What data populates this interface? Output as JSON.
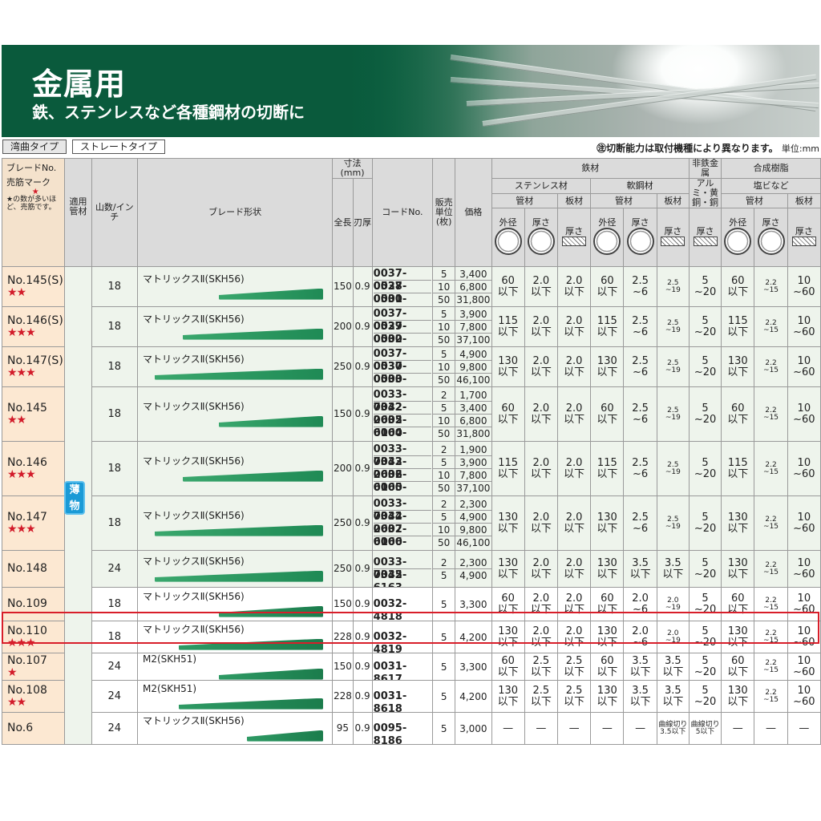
{
  "header": {
    "title": "金属用",
    "subtitle": "鉄、ステンレスなど各種鋼材の切断に"
  },
  "tabs": [
    "湾曲タイプ",
    "ストレートタイプ"
  ],
  "note": "㊟切断能力は取付機種により異なります。",
  "unit": "単位:mm",
  "columns": {
    "blade_no": "ブレードNo.",
    "mark": "売筋マーク",
    "mark_note": "★の数が多いほど、売筋です。",
    "material": "適用管材",
    "teeth": "山数/インチ",
    "shape": "ブレード形状",
    "dims": "寸法(mm)",
    "length": "全長",
    "thickness": "刃厚",
    "code": "コードNo.",
    "unit": "販売単位(枚)",
    "price": "価格",
    "steel": "鉄材",
    "stainless": "ステンレス材",
    "mild": "軟鋼材",
    "nonferrous": "非鉄金属",
    "resin": "合成樹脂",
    "nonferrous_sub": "アルミ・黄銅・銅",
    "resin_sub": "塩ビなど",
    "pipe": "管材",
    "plate": "板材",
    "od": "外径",
    "thick": "厚さ"
  },
  "thin_mark": "薄物",
  "rows": [
    {
      "no": "No.145(S)",
      "stars": "★★",
      "teeth": "18",
      "shape": "マトリックスⅡ(SKH56)",
      "len": "150",
      "t": "0.9",
      "codes": [
        [
          "0037-0528",
          "5",
          "3,400"
        ],
        [
          "0037-0531",
          "10",
          "6,800"
        ],
        [
          "0000-4421",
          "50",
          "31,800"
        ]
      ],
      "cap": [
        "60\n以下",
        "2.0\n以下",
        "2.0\n以下",
        "60\n以下",
        "2.5\n~6",
        "2.5\n~19",
        "5\n~20",
        "60\n以下",
        "2.2\n~15",
        "10\n~60"
      ]
    },
    {
      "no": "No.146(S)",
      "stars": "★★★",
      "teeth": "18",
      "shape": "マトリックスⅡ(SKH56)",
      "len": "200",
      "t": "0.9",
      "codes": [
        [
          "0037-0529",
          "5",
          "3,900"
        ],
        [
          "0037-0532",
          "10",
          "7,800"
        ],
        [
          "0000-4422",
          "50",
          "37,100"
        ]
      ],
      "cap": [
        "115\n以下",
        "2.0\n以下",
        "2.0\n以下",
        "115\n以下",
        "2.5\n~6",
        "2.5\n~19",
        "5\n~20",
        "115\n以下",
        "2.2\n~15",
        "10\n~60"
      ]
    },
    {
      "no": "No.147(S)",
      "stars": "★★★",
      "teeth": "18",
      "shape": "マトリックスⅡ(SKH56)",
      "len": "250",
      "t": "0.9",
      "codes": [
        [
          "0037-0530",
          "5",
          "4,900"
        ],
        [
          "0037-0533",
          "10",
          "9,800"
        ],
        [
          "0000-4423",
          "50",
          "46,100"
        ]
      ],
      "cap": [
        "130\n以下",
        "2.0\n以下",
        "2.0\n以下",
        "130\n以下",
        "2.5\n~6",
        "2.5\n~19",
        "5\n~20",
        "130\n以下",
        "2.2\n~15",
        "10\n~60"
      ]
    },
    {
      "no": "No.145",
      "stars": "★★",
      "teeth": "18",
      "shape": "マトリックスⅡ(SKH56)",
      "len": "150",
      "t": "0.9",
      "codes": [
        [
          "0033-7342",
          "2",
          "1,700"
        ],
        [
          "0032-2605",
          "5",
          "3,400"
        ],
        [
          "0032-6164",
          "10",
          "6,800"
        ],
        [
          "0000-4416",
          "50",
          "31,800"
        ]
      ],
      "cap": [
        "60\n以下",
        "2.0\n以下",
        "2.0\n以下",
        "60\n以下",
        "2.5\n~6",
        "2.5\n~19",
        "5\n~20",
        "60\n以下",
        "2.2\n~15",
        "10\n~60"
      ]
    },
    {
      "no": "No.146",
      "stars": "★★★",
      "teeth": "18",
      "shape": "マトリックスⅡ(SKH56)",
      "len": "200",
      "t": "0.9",
      "codes": [
        [
          "0033-7343",
          "2",
          "1,900"
        ],
        [
          "0032-2606",
          "5",
          "3,900"
        ],
        [
          "0032-6165",
          "10",
          "7,800"
        ],
        [
          "0000-3464",
          "50",
          "37,100"
        ]
      ],
      "cap": [
        "115\n以下",
        "2.0\n以下",
        "2.0\n以下",
        "115\n以下",
        "2.5\n~6",
        "2.5\n~19",
        "5\n~20",
        "115\n以下",
        "2.2\n~15",
        "10\n~60"
      ]
    },
    {
      "no": "No.147",
      "stars": "★★★",
      "teeth": "18",
      "shape": "マトリックスⅡ(SKH56)",
      "len": "250",
      "t": "0.9",
      "codes": [
        [
          "0033-7344",
          "2",
          "2,300"
        ],
        [
          "0032-2607",
          "5",
          "4,900"
        ],
        [
          "0032-6166",
          "10",
          "9,800"
        ],
        [
          "0000-4417",
          "50",
          "46,100"
        ]
      ],
      "cap": [
        "130\n以下",
        "2.0\n以下",
        "2.0\n以下",
        "130\n以下",
        "2.5\n~6",
        "2.5\n~19",
        "5\n~20",
        "130\n以下",
        "2.2\n~15",
        "10\n~60"
      ]
    },
    {
      "no": "No.148",
      "stars": "",
      "teeth": "24",
      "shape": "マトリックスⅡ(SKH56)",
      "len": "250",
      "t": "0.9",
      "codes": [
        [
          "0033-7345",
          "2",
          "2,300"
        ],
        [
          "0032-6163",
          "5",
          "4,900"
        ]
      ],
      "cap": [
        "130\n以下",
        "2.0\n以下",
        "2.0\n以下",
        "130\n以下",
        "3.5\n以下",
        "3.5\n以下",
        "5\n~20",
        "130\n以下",
        "2.2\n~15",
        "10\n~60"
      ]
    },
    {
      "no": "No.109",
      "stars": "",
      "teeth": "18",
      "shape": "マトリックスⅡ(SKH56)",
      "len": "150",
      "t": "0.9",
      "codes": [
        [
          "0032-4818",
          "5",
          "3,300"
        ]
      ],
      "cap": [
        "60\n以下",
        "2.0\n以下",
        "2.0\n以下",
        "60\n以下",
        "2.0\n~6",
        "2.0\n~19",
        "5\n~20",
        "60\n以下",
        "2.2\n~15",
        "10\n~60"
      ]
    },
    {
      "no": "No.110",
      "stars": "★★★",
      "teeth": "18",
      "shape": "マトリックスⅡ(SKH56)",
      "len": "228",
      "t": "0.9",
      "codes": [
        [
          "0032-4819",
          "5",
          "4,200"
        ]
      ],
      "cap": [
        "130\n以下",
        "2.0\n以下",
        "2.0\n以下",
        "130\n以下",
        "2.0\n~6",
        "2.0\n~19",
        "5\n~20",
        "130\n以下",
        "2.2\n~15",
        "10\n~60"
      ]
    },
    {
      "no": "No.107",
      "stars": "★",
      "teeth": "24",
      "shape": "M2(SKH51)",
      "len": "150",
      "t": "0.9",
      "codes": [
        [
          "0031-8617",
          "5",
          "3,300"
        ]
      ],
      "cap": [
        "60\n以下",
        "2.5\n以下",
        "2.5\n以下",
        "60\n以下",
        "3.5\n以下",
        "3.5\n以下",
        "5\n~20",
        "60\n以下",
        "2.2\n~15",
        "10\n~60"
      ]
    },
    {
      "no": "No.108",
      "stars": "★★",
      "teeth": "24",
      "shape": "M2(SKH51)",
      "len": "228",
      "t": "0.9",
      "codes": [
        [
          "0031-8618",
          "5",
          "4,200"
        ]
      ],
      "cap": [
        "130\n以下",
        "2.5\n以下",
        "2.5\n以下",
        "130\n以下",
        "3.5\n以下",
        "3.5\n以下",
        "5\n~20",
        "130\n以下",
        "2.2\n~15",
        "10\n~60"
      ]
    },
    {
      "no": "No.6",
      "stars": "",
      "teeth": "24",
      "shape": "マトリックスⅡ(SKH56)",
      "len": "95",
      "t": "0.9",
      "codes": [
        [
          "0095-8186",
          "5",
          "3,000"
        ]
      ],
      "cap": [
        "—",
        "—",
        "—",
        "—",
        "—",
        "曲線切り\n3.5以下",
        "曲線切り\n5以下",
        "—",
        "—",
        "—"
      ]
    }
  ]
}
